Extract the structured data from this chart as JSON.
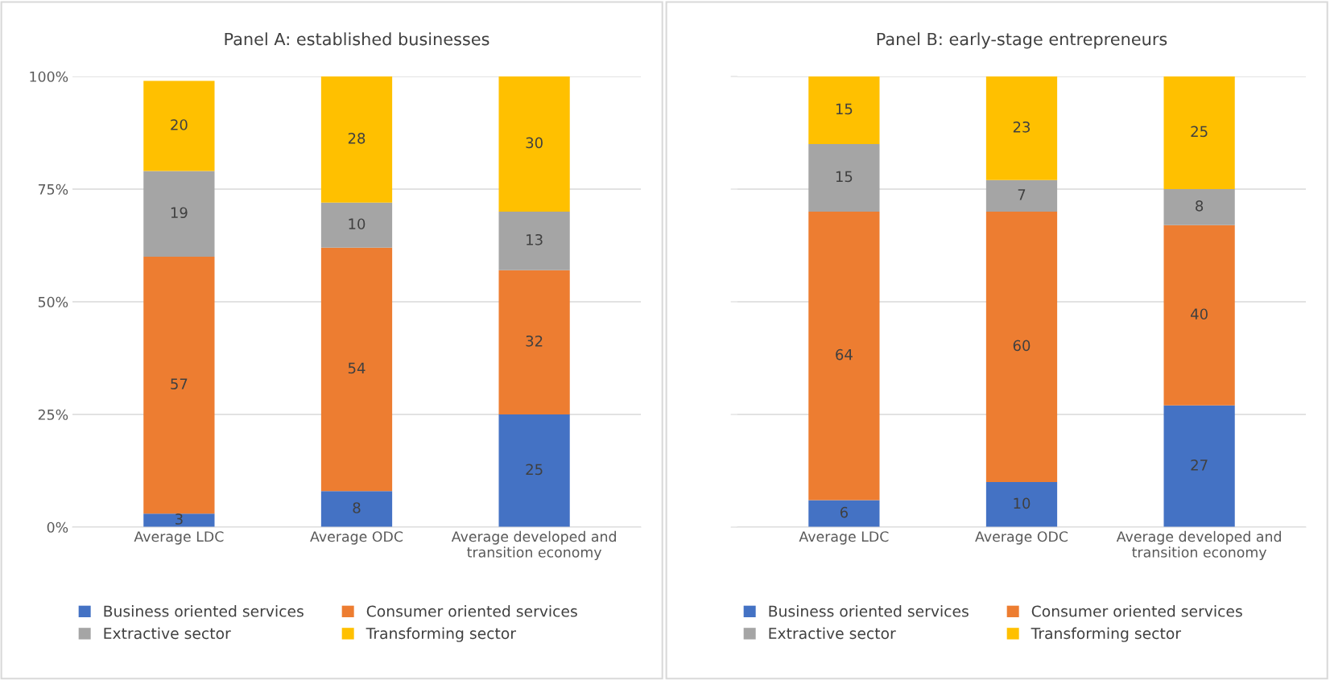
{
  "chart_data": [
    {
      "type": "bar",
      "title": "Panel A: established businesses",
      "stacked": true,
      "data_labels": true,
      "grid": "y",
      "legend": "bottom",
      "categories": [
        "Average LDC",
        "Average ODC",
        "Average developed and\ntransition economy"
      ],
      "ylim": [
        0,
        100
      ],
      "yticks": [
        {
          "value": 0,
          "label": "0%"
        },
        {
          "value": 25,
          "label": "25%"
        },
        {
          "value": 50,
          "label": "50%"
        },
        {
          "value": 75,
          "label": "75%"
        },
        {
          "value": 100,
          "label": "100%"
        }
      ],
      "series": [
        {
          "name": "Business oriented services",
          "color": "#4472c4",
          "values": [
            3,
            8,
            25
          ]
        },
        {
          "name": "Consumer oriented services",
          "color": "#ed7d31",
          "values": [
            57,
            54,
            32
          ]
        },
        {
          "name": "Extractive sector",
          "color": "#a5a5a5",
          "values": [
            19,
            10,
            13
          ]
        },
        {
          "name": "Transforming sector",
          "color": "#ffc000",
          "values": [
            20,
            28,
            30
          ]
        }
      ]
    },
    {
      "type": "bar",
      "title": "Panel B: early-stage entrepreneurs",
      "stacked": true,
      "data_labels": true,
      "grid": "y",
      "legend": "bottom",
      "tick_labels": "x",
      "categories": [
        "Average LDC",
        "Average ODC",
        "Average developed and\ntransition economy"
      ],
      "ylim": [
        0,
        100
      ],
      "yticks": [
        0,
        25,
        50,
        75,
        100
      ],
      "series": [
        {
          "name": "Business oriented services",
          "color": "#4472c4",
          "values": [
            6,
            10,
            27
          ]
        },
        {
          "name": "Consumer oriented services",
          "color": "#ed7d31",
          "values": [
            64,
            60,
            40
          ]
        },
        {
          "name": "Extractive sector",
          "color": "#a5a5a5",
          "values": [
            15,
            7,
            8
          ]
        },
        {
          "name": "Transforming sector",
          "color": "#ffc000",
          "values": [
            15,
            23,
            25
          ]
        }
      ]
    }
  ]
}
